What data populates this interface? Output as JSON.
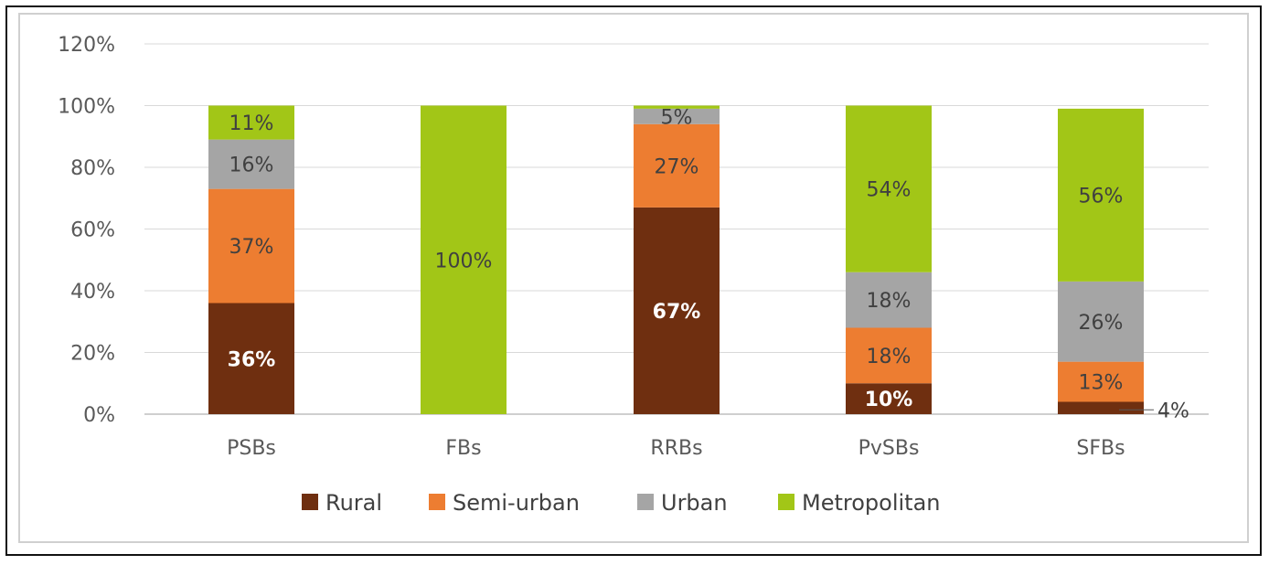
{
  "chart_data": {
    "type": "bar",
    "stacked": true,
    "categories": [
      "PSBs",
      "FBs",
      "RRBs",
      "PvSBs",
      "SFBs"
    ],
    "series": [
      {
        "name": "Rural",
        "color": "#6f2f10",
        "label_color": "#ffffff",
        "values": [
          36,
          0,
          67,
          10,
          4
        ],
        "labels": [
          "36%",
          "",
          "67%",
          "10%",
          "4%"
        ]
      },
      {
        "name": "Semi-urban",
        "color": "#ed7d31",
        "label_color": "#404040",
        "values": [
          37,
          0,
          27,
          18,
          13
        ],
        "labels": [
          "37%",
          "",
          "27%",
          "18%",
          "13%"
        ]
      },
      {
        "name": "Urban",
        "color": "#a5a5a5",
        "label_color": "#404040",
        "values": [
          16,
          0,
          5,
          18,
          26
        ],
        "labels": [
          "16%",
          "",
          "5%",
          "18%",
          "26%"
        ]
      },
      {
        "name": "Metropolitan",
        "color": "#a2c617",
        "label_color": "#404040",
        "values": [
          11,
          100,
          1,
          54,
          56
        ],
        "labels": [
          "11%",
          "100%",
          "",
          "54%",
          "56%"
        ]
      }
    ],
    "yticks": [
      "0%",
      "20%",
      "40%",
      "60%",
      "80%",
      "100%",
      "120%"
    ],
    "ylim": [
      0,
      120
    ],
    "grid": true,
    "legend": "bottom",
    "title": "",
    "xlabel": "",
    "ylabel": ""
  }
}
